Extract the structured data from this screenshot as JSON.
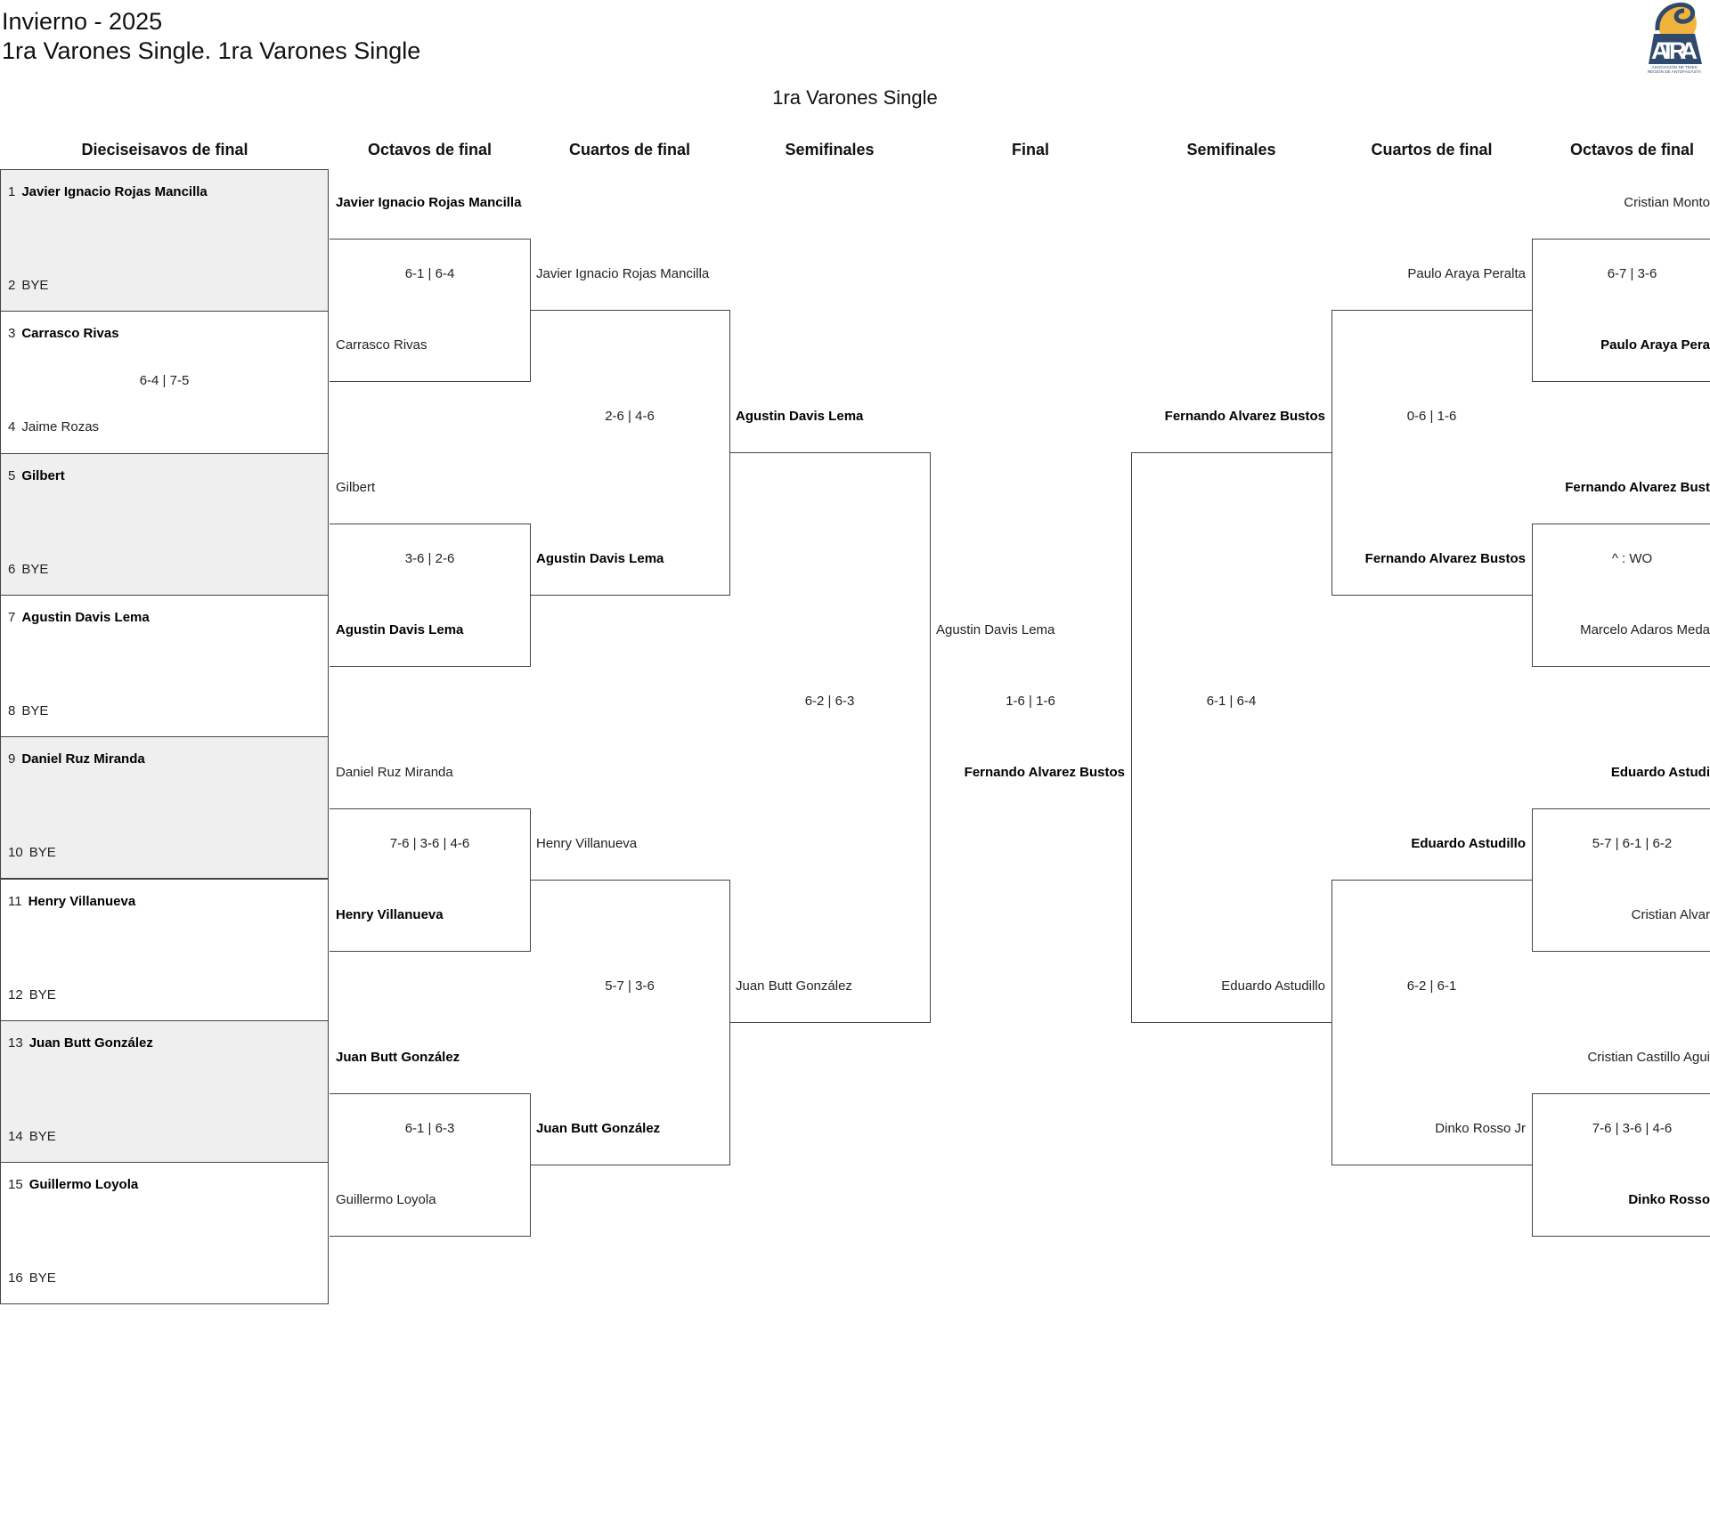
{
  "header": {
    "season": "Invierno - 2025",
    "category": "1ra Varones Single. 1ra Varones Single",
    "bracket_title": "1ra Varones Single",
    "logo_text": "ATRA",
    "logo_subtext": "ASOCIACIÓN DE TENIS REGIÓN DE ANTOFAGASTA"
  },
  "columns": [
    "Dieciseisavos de final",
    "Octavos de final",
    "Cuartos de final",
    "Semifinales",
    "Final",
    "Semifinales",
    "Cuartos de final",
    "Octavos de final"
  ],
  "round_of_32": [
    {
      "seed1": "1",
      "p1": "Javier Ignacio Rojas Mancilla",
      "seed2": "2",
      "p2": "BYE",
      "score": "",
      "winner": 1
    },
    {
      "seed1": "3",
      "p1": "Carrasco Rivas",
      "seed2": "4",
      "p2": "Jaime Rozas",
      "score": "6-4 | 7-5",
      "winner": 1
    },
    {
      "seed1": "5",
      "p1": "Gilbert",
      "seed2": "6",
      "p2": "BYE",
      "score": "",
      "winner": 1
    },
    {
      "seed1": "7",
      "p1": "Agustin Davis Lema",
      "seed2": "8",
      "p2": "BYE",
      "score": "",
      "winner": 1
    },
    {
      "seed1": "9",
      "p1": "Daniel Ruz Miranda",
      "seed2": "10",
      "p2": "BYE",
      "score": "",
      "winner": 1
    },
    {
      "seed1": "11",
      "p1": "Henry Villanueva",
      "seed2": "12",
      "p2": "BYE",
      "score": "",
      "winner": 1
    },
    {
      "seed1": "13",
      "p1": "Juan Butt González",
      "seed2": "14",
      "p2": "BYE",
      "score": "",
      "winner": 1
    },
    {
      "seed1": "15",
      "p1": "Guillermo Loyola",
      "seed2": "16",
      "p2": "BYE",
      "score": "",
      "winner": 1
    }
  ],
  "left": {
    "octavos": [
      {
        "p1": "Javier Ignacio Rojas Mancilla",
        "score": "6-1 | 6-4",
        "p2": "Carrasco Rivas",
        "winner": 1
      },
      {
        "p1": "Gilbert",
        "score": "3-6 | 2-6",
        "p2": "Agustin Davis Lema",
        "winner": 2
      },
      {
        "p1": "Daniel Ruz Miranda",
        "score": "7-6 | 3-6 | 4-6",
        "p2": "Henry Villanueva",
        "winner": 2
      },
      {
        "p1": "Juan Butt González",
        "score": "6-1 | 6-3",
        "p2": "Guillermo Loyola",
        "winner": 1
      }
    ],
    "cuartos": [
      {
        "p1": "Javier Ignacio Rojas Mancilla",
        "score": "2-6 | 4-6",
        "p2": "Agustin Davis Lema",
        "winner": 2
      },
      {
        "p1": "Henry Villanueva",
        "score": "5-7 | 3-6",
        "p2": "Juan Butt González",
        "winner": 2
      }
    ],
    "semis": [
      {
        "p1": "Agustin Davis Lema",
        "score": "6-2 | 6-3",
        "p2": "Juan Butt González",
        "winner": 1
      }
    ]
  },
  "final": {
    "p1": "Agustin Davis Lema",
    "score": "1-6 | 1-6",
    "p2": "Fernando Alvarez Bustos",
    "winner": 2
  },
  "right": {
    "semis": [
      {
        "p1": "Fernando Alvarez Bustos",
        "score": "6-1 | 6-4",
        "p2": "Eduardo Astudillo",
        "winner": 1
      }
    ],
    "cuartos": [
      {
        "p1": "Paulo Araya Peralta",
        "score": "0-6 | 1-6",
        "p2": "Fernando Alvarez Bustos",
        "winner": 2
      },
      {
        "p1": "Eduardo Astudillo",
        "score": "6-2 | 6-1",
        "p2": "Dinko Rosso Jr",
        "winner": 1
      }
    ],
    "octavos": [
      {
        "p1": "Cristian Monto",
        "score": "6-7 | 3-6",
        "p2": "Paulo Araya Pera",
        "winner": 2
      },
      {
        "p1": "Fernando Alvarez Bust",
        "score": "^ : WO",
        "p2": "Marcelo Adaros Meda",
        "winner": 1
      },
      {
        "p1": "Eduardo Astudi",
        "score": "5-7 | 6-1 | 6-2",
        "p2": "Cristian Alvar",
        "winner": 1
      },
      {
        "p1": "Cristian Castillo Agui",
        "score": "7-6 | 3-6 | 4-6",
        "p2": "Dinko Rosso",
        "winner": 2
      }
    ]
  },
  "colors": {
    "line": "#444444",
    "alt_row": "#efefef",
    "logo_navy": "#2f4a6d",
    "logo_yellow": "#f0b43c"
  }
}
